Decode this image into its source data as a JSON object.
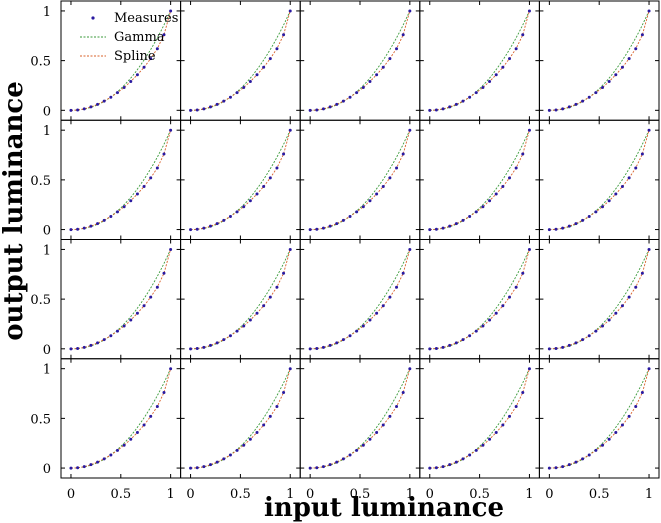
{
  "chart_data": {
    "type": "scatter",
    "xlabel": "input luminance",
    "ylabel": "output luminance",
    "grid_rows": 4,
    "grid_cols": 5,
    "xlim": [
      -0.1,
      1.1
    ],
    "ylim": [
      -0.1,
      1.1
    ],
    "xticks": [
      0,
      0.5,
      1
    ],
    "xtick_labels": [
      "0",
      "0.5",
      "1"
    ],
    "yticks": [
      0,
      0.5,
      1
    ],
    "ytick_labels": [
      "0",
      "0.5",
      "1"
    ],
    "grid": false,
    "legend": {
      "placement": "top-left",
      "entries": [
        "Measures",
        "Gamma",
        "Spline"
      ]
    },
    "series": [
      {
        "name": "Measures",
        "style": "points",
        "color": "#2a1aa0",
        "x": [
          0,
          0.0667,
          0.1333,
          0.2,
          0.2667,
          0.3333,
          0.4,
          0.4667,
          0.5333,
          0.6,
          0.6667,
          0.7333,
          0.8,
          0.8667,
          0.9333,
          1
        ],
        "y": [
          0,
          0.003,
          0.014,
          0.034,
          0.06,
          0.093,
          0.132,
          0.178,
          0.23,
          0.29,
          0.358,
          0.433,
          0.52,
          0.62,
          0.76,
          1
        ]
      },
      {
        "name": "Gamma",
        "style": "dashed-line",
        "color": "#3a9a3a",
        "gamma": 2.2
      },
      {
        "name": "Spline",
        "style": "dashed-line",
        "color": "#d8602a",
        "x": [
          0,
          0.0667,
          0.1333,
          0.2,
          0.2667,
          0.3333,
          0.4,
          0.4667,
          0.5333,
          0.6,
          0.6667,
          0.7333,
          0.8,
          0.8667,
          0.9333,
          1
        ],
        "y": [
          0,
          0.003,
          0.014,
          0.034,
          0.06,
          0.093,
          0.132,
          0.178,
          0.23,
          0.29,
          0.358,
          0.433,
          0.52,
          0.62,
          0.76,
          1
        ]
      }
    ]
  }
}
